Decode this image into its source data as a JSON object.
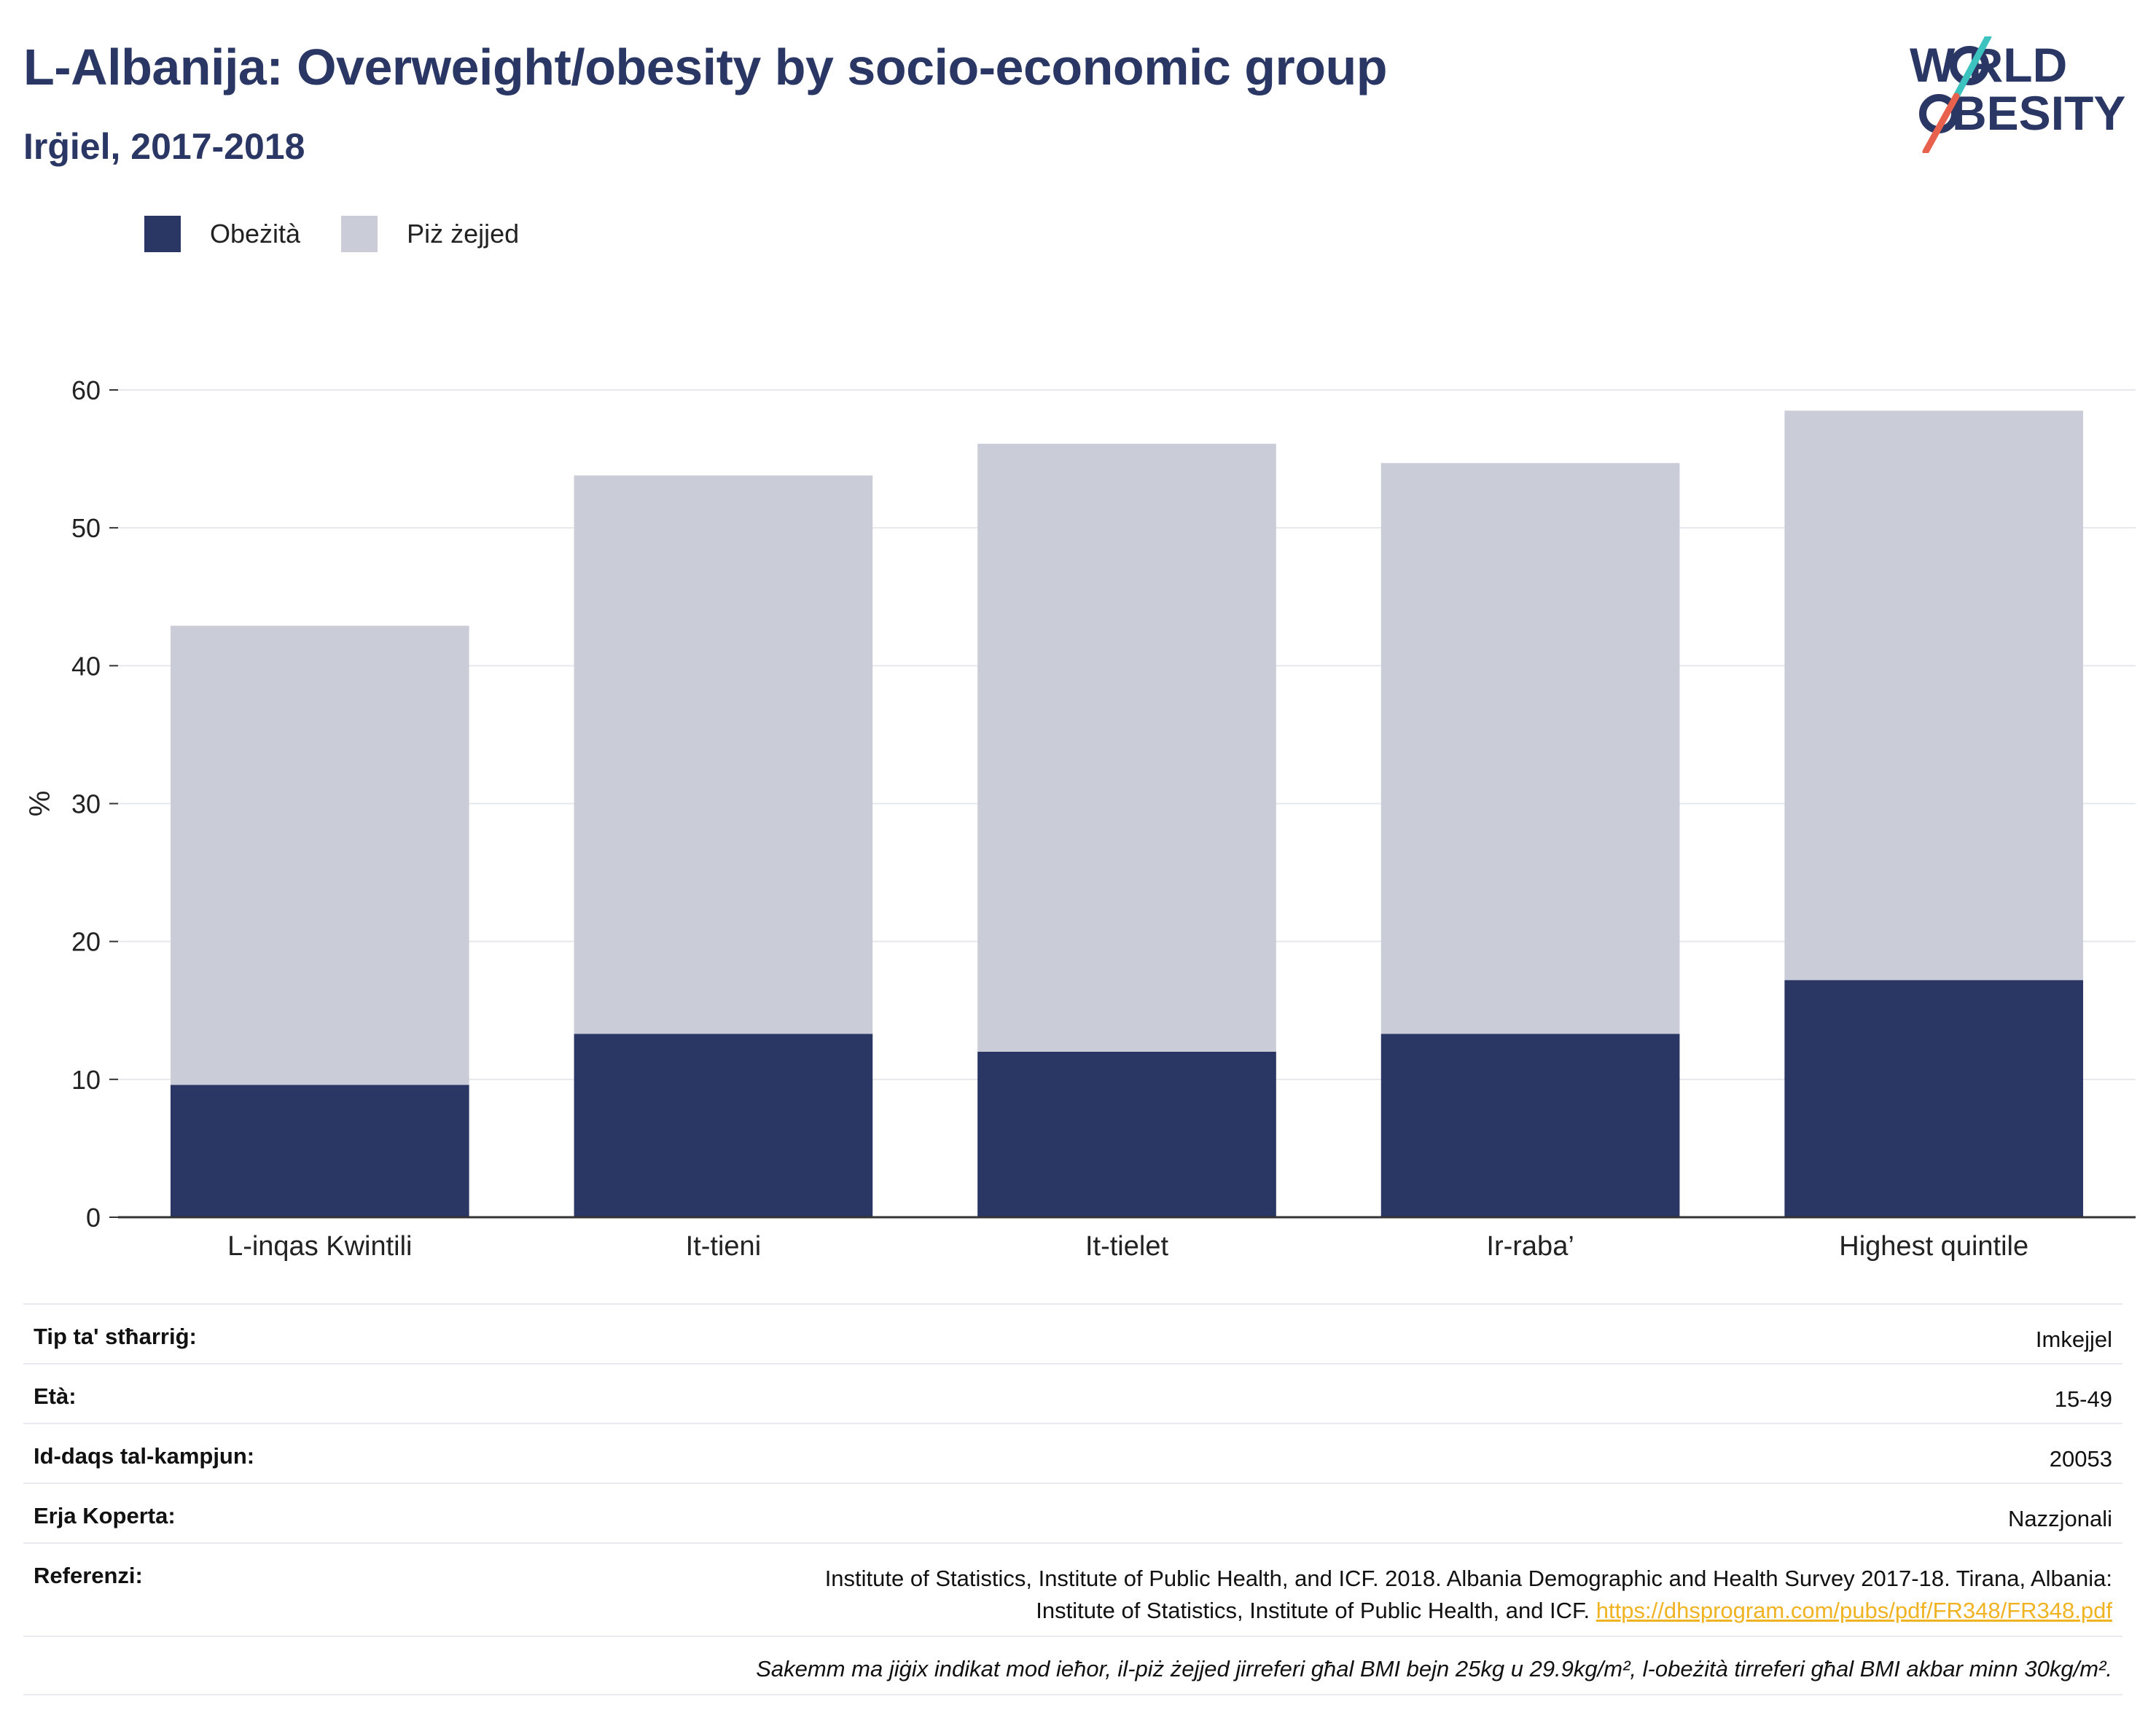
{
  "header": {
    "title": "L-Albanija: Overweight/obesity by socio-economic group",
    "subtitle": "Irġiel, 2017-2018"
  },
  "logo": {
    "line1": "W RLD",
    "line2": "BESITY",
    "colors": {
      "slash_top": "#3cc3c0",
      "slash_bottom": "#e8614d",
      "text": "#2a3663"
    }
  },
  "colors": {
    "obesity": "#2a3663",
    "overweight": "#cacdd8",
    "grid": "#e6e8ee",
    "axis": "#333333"
  },
  "chart_data": {
    "type": "bar",
    "stacked": true,
    "categories": [
      "L-inqas Kwintili",
      "It-tieni",
      "It-tielet",
      "Ir-raba’",
      "Highest quintile"
    ],
    "series": [
      {
        "name": "Obeżità",
        "values": [
          9.6,
          13.3,
          12.0,
          13.3,
          17.2
        ]
      },
      {
        "name": "Piż żejjed",
        "values": [
          33.3,
          40.5,
          44.1,
          41.4,
          41.3
        ]
      }
    ],
    "ylabel": "%",
    "ylim": [
      0,
      60
    ],
    "yticks": [
      0,
      10,
      20,
      30,
      40,
      50,
      60
    ],
    "grid": true,
    "legend": "top-left"
  },
  "meta": {
    "rows": [
      {
        "key": "Tip ta' stħarriġ:",
        "value": "Imkejjel"
      },
      {
        "key": "Età:",
        "value": "15-49"
      },
      {
        "key": "Id-daqs tal-kampjun:",
        "value": "20053"
      },
      {
        "key": "Erja Koperta:",
        "value": "Nazzjonali"
      }
    ],
    "reference": {
      "key": "Referenzi:",
      "line1": "Institute of Statistics, Institute of Public Health, and ICF. 2018. Albania Demographic and Health Survey 2017-18. Tirana, Albania:",
      "line2": "Institute of Statistics, Institute of Public Health, and ICF.",
      "link": "https://dhsprogram.com/pubs/pdf/FR348/FR348.pdf"
    },
    "note": "Sakemm ma jiġix indikat mod ieħor, il-piż żejjed jirreferi għal BMI bejn 25kg u 29.9kg/m², l-obeżità tirreferi għal BMI akbar minn 30kg/m²."
  }
}
